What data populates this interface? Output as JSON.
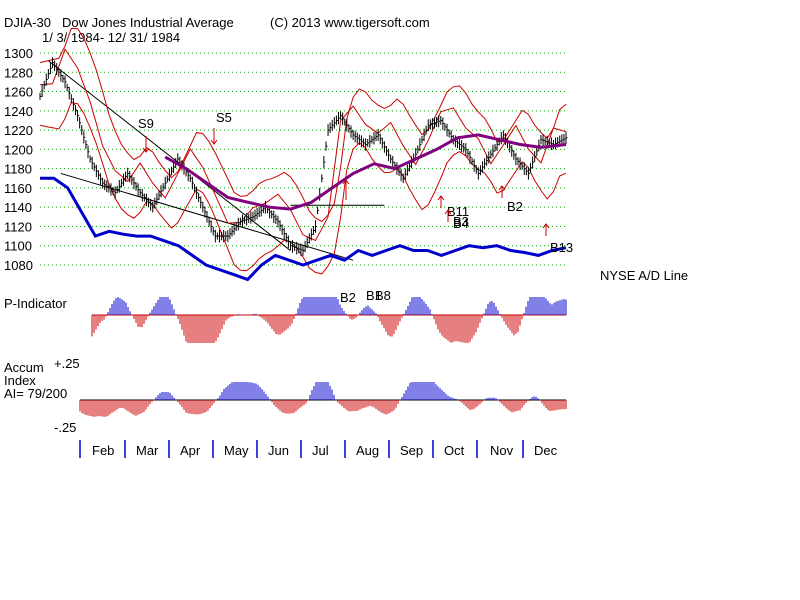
{
  "header": {
    "symbol": "DJIA-30",
    "name": "Dow Jones Industrial Average",
    "copyright": "(C) 2013 www.tigersoft.com",
    "date_range": "1/ 3/ 1984- 12/ 31/ 1984"
  },
  "labels": {
    "ad_line": "NYSE A/D Line",
    "p_indicator": "P-Indicator",
    "accum_line1": "Accum",
    "accum_line2": "Index",
    "accum_ai": "AI= 79/200",
    "accum_top": "+.25",
    "accum_bottom": "-.25"
  },
  "colors": {
    "price_bars": "#000000",
    "bands": "#cc0000",
    "moving_avg": "#800080",
    "ad_line": "#0000cc",
    "positive_hist": "#0000cc",
    "negative_hist": "#cc0000",
    "grid": "#00aa00"
  },
  "chart_data": {
    "type": "line",
    "title": "DJIA-30 Dow Jones Industrial Average 1984",
    "y_ticks": [
      "1300",
      "1280",
      "1260",
      "1240",
      "1220",
      "1200",
      "1180",
      "1160",
      "1140",
      "1120",
      "1100",
      "1080"
    ],
    "ylim": [
      1080,
      1300
    ],
    "months": [
      "Feb",
      "Mar",
      "Apr",
      "May",
      "Jun",
      "Jul",
      "Aug",
      "Sep",
      "Oct",
      "Nov",
      "Dec"
    ],
    "signals": [
      "S9",
      "S5",
      "B11",
      "B3",
      "B4",
      "B2",
      "B13",
      "B2",
      "B1",
      "B8"
    ],
    "price_series": {
      "name": "DJIA close",
      "day": [
        0,
        6,
        12,
        18,
        24,
        30,
        36,
        42,
        48,
        54,
        60,
        66,
        72,
        78,
        84,
        90,
        96,
        102,
        108,
        114,
        120,
        126,
        132,
        138,
        144,
        150,
        156,
        162,
        168,
        174,
        180,
        186,
        192,
        198,
        204,
        210,
        216,
        222,
        228,
        234,
        240,
        246,
        252
      ],
      "close": [
        1255,
        1290,
        1270,
        1235,
        1190,
        1165,
        1155,
        1175,
        1155,
        1140,
        1165,
        1190,
        1170,
        1140,
        1110,
        1110,
        1125,
        1130,
        1140,
        1125,
        1100,
        1095,
        1120,
        1220,
        1235,
        1215,
        1205,
        1215,
        1190,
        1170,
        1195,
        1225,
        1230,
        1210,
        1200,
        1175,
        1195,
        1215,
        1190,
        1175,
        1210,
        1205,
        1212
      ]
    },
    "moving_average": {
      "name": "21-day MA",
      "day": [
        60,
        70,
        80,
        90,
        100,
        110,
        120,
        130,
        140,
        150,
        160,
        170,
        180,
        190,
        200,
        210,
        220,
        230,
        240,
        252
      ],
      "value": [
        1192,
        1180,
        1165,
        1150,
        1145,
        1140,
        1138,
        1145,
        1160,
        1175,
        1185,
        1180,
        1190,
        1200,
        1212,
        1215,
        1210,
        1205,
        1202,
        1205
      ]
    },
    "ad_line_values": [
      1170,
      1170,
      1160,
      1135,
      1110,
      1115,
      1112,
      1110,
      1110,
      1105,
      1100,
      1090,
      1080,
      1075,
      1070,
      1065,
      1080,
      1090,
      1085,
      1080,
      1085,
      1090,
      1085,
      1095,
      1090,
      1095,
      1100,
      1095,
      1095,
      1090,
      1095,
      1100,
      1098,
      1100,
      1095,
      1093,
      1090,
      1095,
      1098
    ]
  }
}
